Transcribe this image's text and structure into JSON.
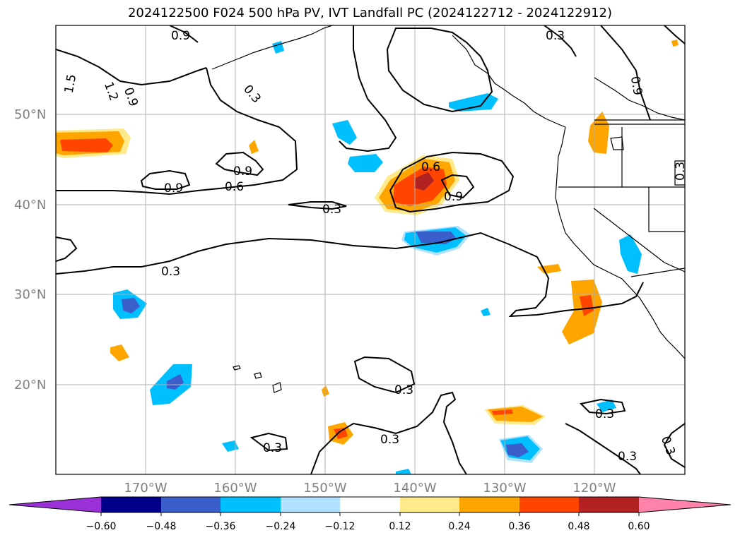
{
  "title": "2024122500 F024 500 hPa PV, IVT Landfall PC (2024122712 - 2024122912)",
  "map": {
    "lat_labels": [
      "50°N",
      "40°N",
      "30°N",
      "20°N"
    ],
    "lon_labels": [
      "170°W",
      "160°W",
      "150°W",
      "140°W",
      "130°W",
      "120°W"
    ],
    "contour_labels": [
      "0.9",
      "0.3",
      "1.5",
      "1.2",
      "0.9",
      "0.3",
      "0.9",
      "0.6",
      "0.9",
      "0.6",
      "0.9",
      "0.3",
      "0.3",
      "0.3",
      "0.3",
      "0.3",
      "0.3",
      "0.3",
      "0.3",
      "0.9",
      "0.3"
    ],
    "colors": {
      "land_line": "#000000",
      "grid": "#b0b0b0",
      "contour": "#000000"
    }
  },
  "colorbar": {
    "ticks": [
      "−0.60",
      "−0.48",
      "−0.36",
      "−0.24",
      "−0.12",
      "0.12",
      "0.24",
      "0.36",
      "0.48",
      "0.60"
    ],
    "colors": [
      "#9b30d9",
      "#00008b",
      "#3a5fcd",
      "#00bfff",
      "#b0e2ff",
      "#ffffff",
      "#ffe98a",
      "#ffa500",
      "#ff4500",
      "#b22222",
      "#ff82ab"
    ]
  }
}
